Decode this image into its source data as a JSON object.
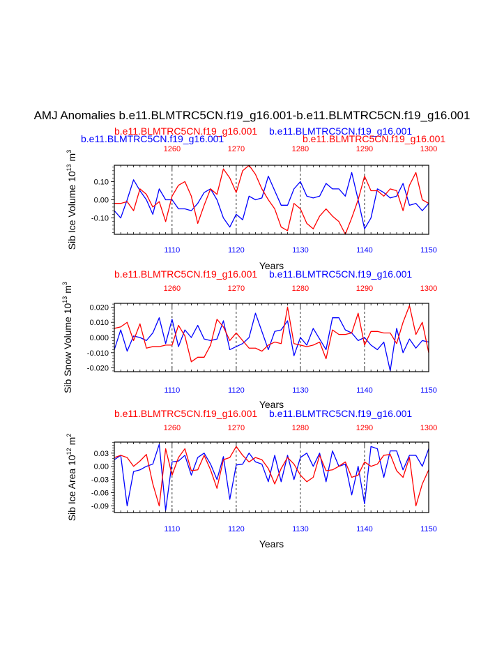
{
  "figure": {
    "main_title": "AMJ Anomalies b.e11.BLMTRC5CN.f19_g16.001-b.e11.BLMTRC5CN.f19_g16.001",
    "colors": {
      "blue": "#0000ff",
      "red": "#ff0000",
      "axis": "#000000",
      "ref_line": "#000000"
    }
  },
  "chart_data": [
    {
      "type": "line",
      "panel_titles": [
        {
          "text": "b.e11.BLMTRC5CN.f19_g16.001",
          "color": "#ff0000"
        },
        {
          "text": "b.e11.BLMTRC5CN.f19_g16.001",
          "color": "#0000ff"
        },
        {
          "text": "b.e11.BLMTRC5CN.f19_g16.001",
          "color": "#0000ff"
        },
        {
          "text": "b.e11.BLMTRC5CN.f19_g16.001",
          "color": "#ff0000"
        }
      ],
      "ylabel": "Sib Ice Volume",
      "ylabel_exp_base": "10",
      "ylabel_exp": "13",
      "ylabel_unit": "m",
      "ylabel_unit_exp": "3",
      "xlabel": "Years",
      "bottom_xlim": [
        1101,
        1150
      ],
      "top_xlim": [
        1251,
        1300
      ],
      "bottom_ticks": [
        1110,
        1120,
        1130,
        1140,
        1150
      ],
      "top_ticks": [
        1260,
        1270,
        1280,
        1290,
        1300
      ],
      "ylim": [
        -0.19,
        0.19
      ],
      "yticks": [
        0.1,
        0.0,
        -0.1
      ],
      "ytick_labels": [
        "0.10",
        "0.00",
        "-0.10"
      ],
      "ref_lines_x": [
        1110,
        1120,
        1130,
        1140
      ],
      "series": [
        {
          "name": "b.e11.BLMTRC5CN.f19_g16.001",
          "color": "#0000ff",
          "axis": "bottom",
          "values": [
            -0.06,
            -0.1,
            0.0,
            0.11,
            0.05,
            0.0,
            -0.08,
            0.06,
            0.0,
            0.0,
            -0.05,
            -0.05,
            -0.06,
            -0.02,
            0.04,
            0.06,
            0.0,
            -0.1,
            -0.15,
            -0.08,
            -0.11,
            0.02,
            0.0,
            0.01,
            0.13,
            0.05,
            -0.03,
            -0.03,
            0.06,
            0.1,
            0.02,
            0.01,
            0.02,
            0.09,
            0.06,
            0.06,
            0.02,
            0.15,
            0.0,
            -0.16,
            -0.1,
            0.06,
            0.04,
            0.01,
            0.02,
            0.09,
            -0.03,
            -0.02,
            -0.06,
            -0.02
          ]
        },
        {
          "name": "b.e11.BLMTRC5CN.f19_g16.001",
          "color": "#ff0000",
          "axis": "top",
          "values": [
            -0.02,
            -0.02,
            -0.01,
            -0.06,
            0.06,
            0.03,
            -0.04,
            -0.01,
            -0.12,
            0.02,
            0.08,
            0.1,
            0.02,
            -0.13,
            -0.03,
            0.06,
            0.03,
            0.17,
            0.12,
            0.04,
            0.16,
            0.19,
            0.14,
            0.06,
            0.0,
            -0.05,
            -0.15,
            -0.17,
            -0.02,
            -0.05,
            -0.13,
            -0.16,
            -0.09,
            -0.05,
            -0.09,
            -0.12,
            -0.19,
            -0.1,
            0.0,
            0.13,
            0.05,
            0.05,
            0.02,
            0.06,
            0.05,
            -0.06,
            0.08,
            0.15,
            0.0,
            -0.02
          ]
        }
      ]
    },
    {
      "type": "line",
      "panel_titles": [
        {
          "text": "b.e11.BLMTRC5CN.f19_g16.001",
          "color": "#ff0000"
        },
        {
          "text": "b.e11.BLMTRC5CN.f19_g16.001",
          "color": "#0000ff"
        }
      ],
      "ylabel": "Sib Snow Volume",
      "ylabel_exp_base": "10",
      "ylabel_exp": "13",
      "ylabel_unit": "m",
      "ylabel_unit_exp": "3",
      "xlabel": "Years",
      "bottom_xlim": [
        1101,
        1150
      ],
      "top_xlim": [
        1251,
        1300
      ],
      "bottom_ticks": [
        1110,
        1120,
        1130,
        1140,
        1150
      ],
      "top_ticks": [
        1260,
        1270,
        1280,
        1290,
        1300
      ],
      "ylim": [
        -0.0225,
        0.0225
      ],
      "yticks": [
        0.02,
        0.01,
        0.0,
        -0.01,
        -0.02
      ],
      "ytick_labels": [
        "0.020",
        "0.010",
        "0.000",
        "-0.010",
        "-0.020"
      ],
      "ref_lines_x": [
        1110,
        1120,
        1130,
        1140
      ],
      "series": [
        {
          "name": "b.e11.BLMTRC5CN.f19_g16.001",
          "color": "#0000ff",
          "axis": "bottom",
          "values": [
            -0.008,
            0.005,
            -0.009,
            0.001,
            0.0,
            -0.002,
            0.003,
            0.013,
            -0.004,
            0.012,
            -0.006,
            0.005,
            0.0,
            0.008,
            -0.001,
            -0.002,
            -0.001,
            0.011,
            -0.008,
            -0.006,
            -0.004,
            0.0,
            0.016,
            0.004,
            -0.008,
            0.004,
            0.005,
            0.011,
            -0.012,
            0.0,
            -0.005,
            0.006,
            -0.001,
            -0.008,
            0.013,
            0.013,
            0.005,
            0.003,
            -0.002,
            0.0,
            -0.005,
            -0.008,
            -0.003,
            -0.022,
            0.006,
            -0.01,
            -0.001,
            -0.007,
            -0.002,
            -0.003
          ]
        },
        {
          "name": "b.e11.BLMTRC5CN.f19_g16.001",
          "color": "#ff0000",
          "axis": "top",
          "values": [
            0.006,
            0.007,
            0.01,
            -0.002,
            0.009,
            -0.007,
            -0.006,
            -0.006,
            -0.005,
            -0.005,
            0.008,
            0.001,
            -0.016,
            -0.013,
            -0.013,
            -0.005,
            0.012,
            0.007,
            -0.002,
            0.003,
            -0.002,
            -0.007,
            -0.007,
            -0.009,
            -0.005,
            -0.003,
            -0.004,
            0.02,
            -0.004,
            -0.005,
            -0.006,
            -0.005,
            -0.003,
            -0.014,
            0.005,
            0.002,
            0.002,
            0.003,
            0.016,
            -0.005,
            0.004,
            0.004,
            0.003,
            0.003,
            -0.004,
            0.01,
            0.021,
            0.002,
            0.01,
            -0.01
          ]
        }
      ]
    },
    {
      "type": "line",
      "panel_titles": [
        {
          "text": "b.e11.BLMTRC5CN.f19_g16.001",
          "color": "#ff0000"
        },
        {
          "text": "b.e11.BLMTRC5CN.f19_g16.001",
          "color": "#0000ff"
        }
      ],
      "ylabel": "Sib Ice Area",
      "ylabel_exp_base": "10",
      "ylabel_exp": "12",
      "ylabel_unit": "m",
      "ylabel_unit_exp": "2",
      "xlabel": "Years",
      "bottom_xlim": [
        1101,
        1150
      ],
      "top_xlim": [
        1251,
        1300
      ],
      "bottom_ticks": [
        1110,
        1120,
        1130,
        1140,
        1150
      ],
      "top_ticks": [
        1260,
        1270,
        1280,
        1290,
        1300
      ],
      "ylim": [
        -0.105,
        0.055
      ],
      "yticks": [
        0.03,
        0.0,
        -0.03,
        -0.06,
        -0.09
      ],
      "ytick_labels": [
        "0.03",
        "0.00",
        "-0.03",
        "-0.06",
        "-0.09"
      ],
      "ref_lines_x": [
        1110,
        1120,
        1130,
        1140
      ],
      "series": [
        {
          "name": "b.e11.BLMTRC5CN.f19_g16.001",
          "color": "#0000ff",
          "axis": "bottom",
          "values": [
            0.015,
            0.025,
            -0.09,
            -0.012,
            -0.008,
            0.0,
            0.005,
            0.05,
            -0.1,
            0.01,
            0.012,
            0.025,
            -0.02,
            0.02,
            0.03,
            0.005,
            -0.03,
            0.022,
            -0.075,
            0.003,
            0.005,
            0.03,
            0.01,
            0.005,
            -0.035,
            0.025,
            -0.035,
            0.025,
            -0.03,
            0.02,
            0.03,
            0.0,
            0.03,
            -0.035,
            0.035,
            0.0,
            0.005,
            -0.065,
            0.0,
            -0.085,
            0.045,
            0.04,
            -0.025,
            0.035,
            0.035,
            -0.008,
            0.025,
            0.025,
            0.0,
            0.04
          ]
        },
        {
          "name": "b.e11.BLMTRC5CN.f19_g16.001",
          "color": "#ff0000",
          "axis": "top",
          "values": [
            0.02,
            0.025,
            0.02,
            0.0,
            0.012,
            0.027,
            -0.04,
            -0.09,
            0.04,
            -0.02,
            0.02,
            0.04,
            -0.01,
            -0.008,
            0.025,
            -0.008,
            -0.05,
            0.015,
            0.02,
            0.045,
            0.025,
            0.01,
            0.02,
            0.015,
            -0.005,
            -0.04,
            -0.005,
            0.02,
            0.005,
            -0.02,
            -0.035,
            -0.025,
            0.025,
            -0.01,
            -0.008,
            0.0,
            0.01,
            -0.025,
            -0.02,
            0.01,
            0.0,
            0.005,
            0.025,
            0.027,
            -0.01,
            -0.025,
            0.02,
            -0.09,
            -0.04,
            -0.008
          ]
        }
      ]
    }
  ]
}
